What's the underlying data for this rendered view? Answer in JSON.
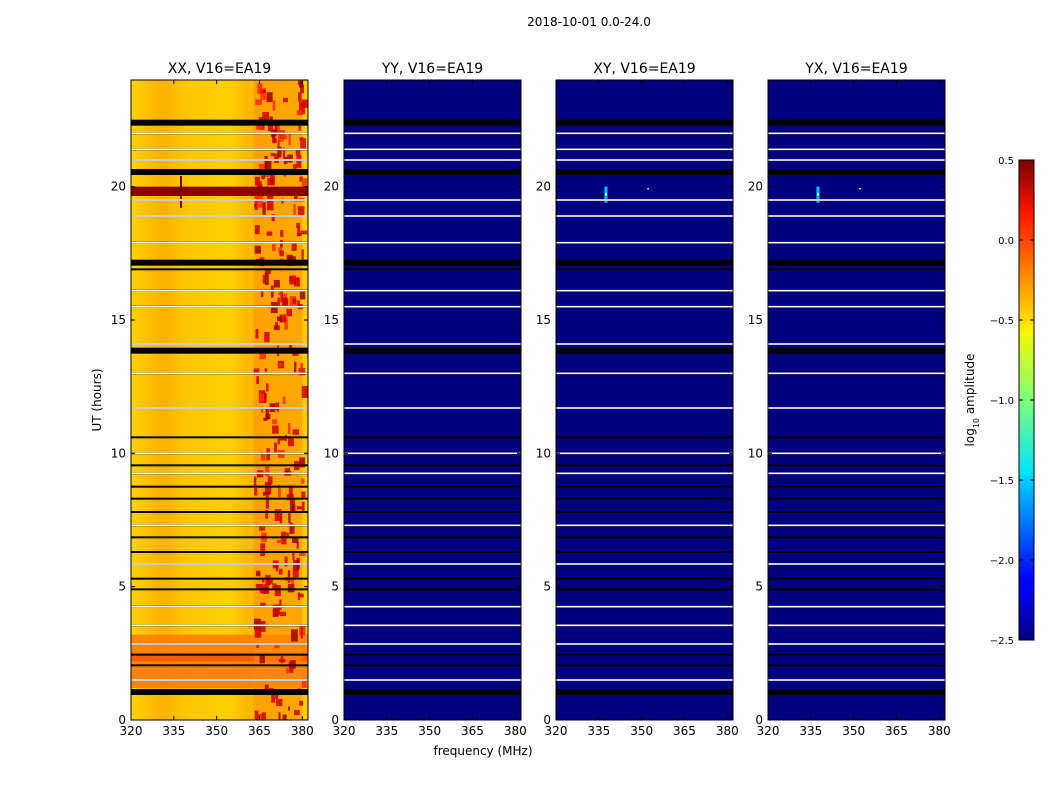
{
  "chart_data": {
    "type": "heatmap",
    "suptitle": "2018-10-01 0.0-24.0",
    "xlabel": "frequency (MHz)",
    "ylabel": "UT (hours)",
    "xlim": [
      320,
      382
    ],
    "ylim": [
      0,
      24
    ],
    "xticks": [
      320,
      335,
      350,
      365,
      380
    ],
    "yticks": [
      0,
      5,
      10,
      15,
      20
    ],
    "panels": [
      {
        "title": "XX, V16=EA19",
        "mean_log_amplitude": -0.5,
        "rfi_band_mhz": [
          363,
          380
        ]
      },
      {
        "title": "YY, V16=EA19",
        "mean_log_amplitude": -2.5,
        "rfi_band_mhz": null
      },
      {
        "title": "XY, V16=EA19",
        "mean_log_amplitude": -2.5,
        "rfi_band_mhz": null
      },
      {
        "title": "YX, V16=EA19",
        "mean_log_amplitude": -2.5,
        "rfi_band_mhz": null
      }
    ],
    "flagged_rows_ut_hours": [
      1.05,
      1.5,
      2.05,
      2.45,
      2.85,
      3.55,
      4.25,
      4.9,
      5.3,
      5.85,
      6.3,
      6.85,
      7.3,
      7.8,
      8.3,
      8.75,
      9.25,
      9.55,
      10.0,
      10.6,
      11.7,
      13.0,
      13.8,
      14.1,
      15.5,
      16.1,
      16.9,
      17.2,
      17.9,
      18.9,
      19.5,
      20.55,
      21.0,
      21.4,
      22.0,
      22.4
    ],
    "colorbar": {
      "label": "log10 amplitude",
      "label_main": "log",
      "label_sub": "10",
      "label_rest": " amplitude",
      "min": -2.5,
      "max": 0.5,
      "ticks": [
        0.5,
        0.0,
        -0.5,
        -1.0,
        -1.5,
        -2.0,
        -2.5
      ],
      "tick_labels": [
        "0.5",
        "0.0",
        "−0.5",
        "−1.0",
        "−1.5",
        "−2.0",
        "−2.5"
      ]
    }
  }
}
